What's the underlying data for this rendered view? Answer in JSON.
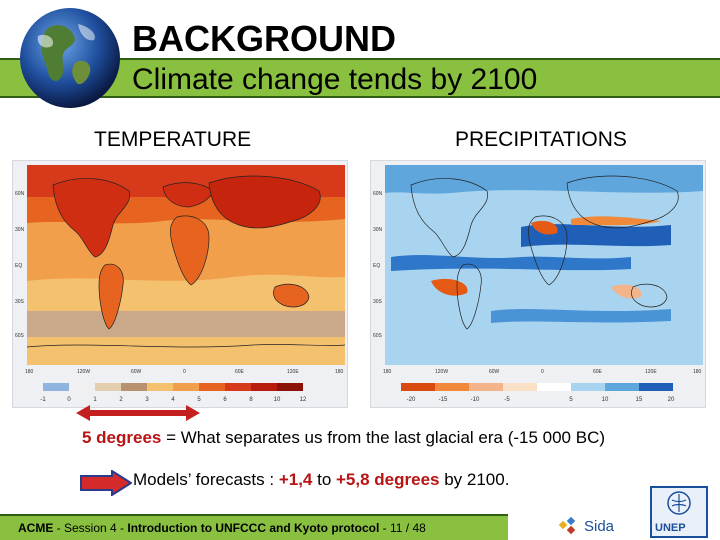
{
  "slide": {
    "title": "BACKGROUND",
    "subtitle": "Climate change tends by 2100",
    "labels": {
      "temperature": "TEMPERATURE",
      "precipitations": "PRECIPITATIONS"
    },
    "temperature_scale": [
      "-1",
      "0",
      "1",
      "2",
      "3",
      "4",
      "5",
      "6",
      "8",
      "10",
      "12"
    ],
    "precipitation_scale": [
      "-20",
      "-15",
      "-10",
      "-5",
      "5",
      "10",
      "15",
      "20"
    ],
    "lat_labels": [
      "60N",
      "30N",
      "EQ",
      "30S",
      "60S"
    ],
    "lon_labels": [
      "180",
      "120W",
      "60W",
      "0",
      "60E",
      "120E",
      "180"
    ],
    "note1": {
      "highlight": "5 degrees",
      "text": " = What separates us from the last glacial era (-15 000 BC)"
    },
    "note2": {
      "prefix": "Models’ forecasts : ",
      "low": "+1,4",
      "middle": " to ",
      "high": "+5,8 degrees",
      "suffix": " by 2100."
    },
    "footer": {
      "acme": "ACME",
      "sep1": " - Session 4 - ",
      "course": "Introduction to UNFCCC and Kyoto protocol",
      "sep2": " - 11 / 48"
    },
    "logos": {
      "sida": "Sida",
      "unep": "UNEP"
    }
  },
  "colors": {
    "header_bar": "#89c040",
    "accent_red": "#b81414",
    "footer_bar": "#89c040"
  }
}
